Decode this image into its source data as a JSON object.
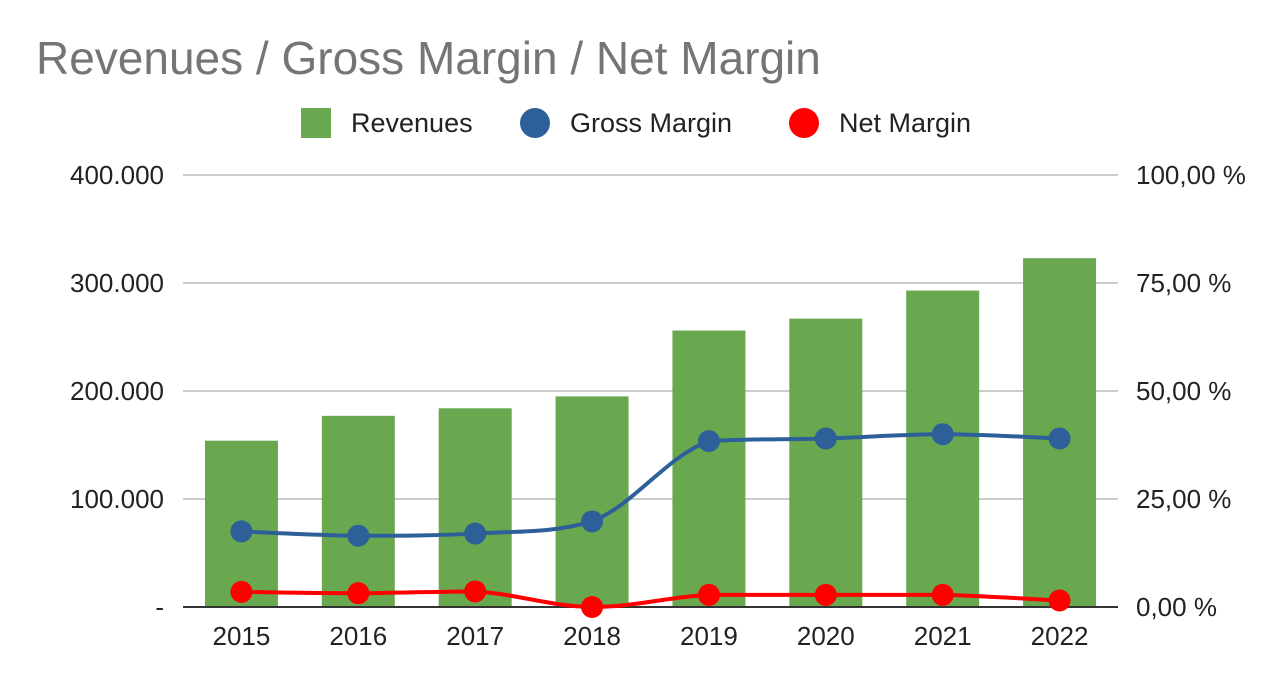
{
  "chart_data": {
    "type": "bar",
    "title": "Revenues / Gross Margin / Net Margin",
    "categories": [
      "2015",
      "2016",
      "2017",
      "2018",
      "2019",
      "2020",
      "2021",
      "2022"
    ],
    "series": [
      {
        "name": "Revenues",
        "type": "bar",
        "axis": "left",
        "color": "#6aa84f",
        "values": [
          154000,
          177000,
          184000,
          195000,
          256000,
          267000,
          293000,
          323000
        ]
      },
      {
        "name": "Gross Margin",
        "type": "line",
        "axis": "right",
        "color": "#2d5f99",
        "values": [
          17.5,
          16.5,
          17.0,
          19.8,
          38.4,
          39.0,
          40.0,
          39.0
        ]
      },
      {
        "name": "Net Margin",
        "type": "line",
        "axis": "right",
        "color": "#ff0000",
        "values": [
          3.5,
          3.2,
          3.6,
          0.0,
          2.8,
          2.8,
          2.8,
          1.5
        ]
      }
    ],
    "left_axis": {
      "ylim": [
        0,
        400000
      ],
      "ticks": [
        0,
        100000,
        200000,
        300000,
        400000
      ],
      "tick_labels": [
        "-",
        "100.000",
        "200.000",
        "300.000",
        "400.000"
      ]
    },
    "right_axis": {
      "ylim": [
        0,
        100
      ],
      "ticks": [
        0,
        25,
        50,
        75,
        100
      ],
      "tick_labels": [
        "0,00 %",
        "25,00 %",
        "50,00 %",
        "75,00 %",
        "100,00 %"
      ]
    },
    "legend": {
      "position": "top",
      "items": [
        "Revenues",
        "Gross Margin",
        "Net Margin"
      ]
    },
    "grid": true
  }
}
